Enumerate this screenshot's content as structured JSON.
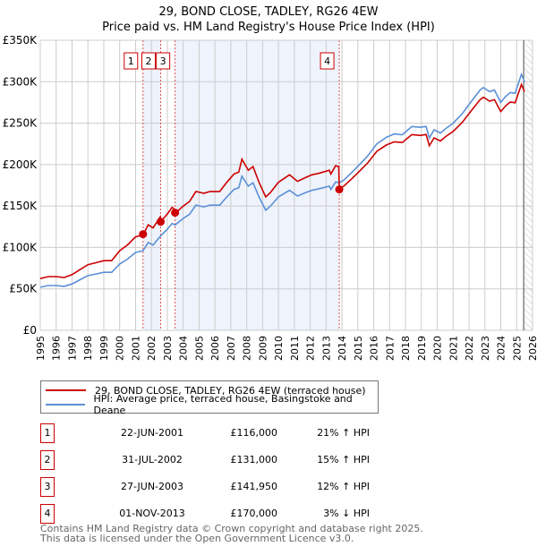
{
  "chart_data": {
    "type": "line",
    "title": "29, BOND CLOSE, TADLEY, RG26 4EW",
    "subtitle": "Price paid vs. HM Land Registry's House Price Index (HPI)",
    "xlim": [
      1995,
      2026
    ],
    "ylim": [
      0,
      350000
    ],
    "y_ticks": [
      {
        "v": 0,
        "label": "£0"
      },
      {
        "v": 50000,
        "label": "£50K"
      },
      {
        "v": 100000,
        "label": "£100K"
      },
      {
        "v": 150000,
        "label": "£150K"
      },
      {
        "v": 200000,
        "label": "£200K"
      },
      {
        "v": 250000,
        "label": "£250K"
      },
      {
        "v": 300000,
        "label": "£300K"
      },
      {
        "v": 350000,
        "label": "£350K"
      }
    ],
    "x_ticks": [
      "1995",
      "1996",
      "1997",
      "1998",
      "1999",
      "2000",
      "2001",
      "2002",
      "2003",
      "2004",
      "2005",
      "2006",
      "2007",
      "2008",
      "2009",
      "2010",
      "2011",
      "2012",
      "2013",
      "2014",
      "2015",
      "2016",
      "2017",
      "2018",
      "2019",
      "2020",
      "2021",
      "2022",
      "2023",
      "2024",
      "2025",
      "2026"
    ],
    "grid": true,
    "future_hatch_from": 2025.5,
    "series": [
      {
        "name": "29, BOND CLOSE, TADLEY, RG26 4EW (terraced house)",
        "color": "#cc0000",
        "x": [
          1995.0,
          1995.5,
          1996.0,
          1996.5,
          1997.0,
          1997.5,
          1998.0,
          1998.5,
          1999.0,
          1999.5,
          2000.0,
          2000.5,
          2001.0,
          2001.47,
          2001.8,
          2002.1,
          2002.55,
          2002.58,
          2003.0,
          2003.3,
          2003.45,
          2003.49,
          2004.0,
          2004.4,
          2004.8,
          2005.3,
          2005.7,
          2006.3,
          2006.7,
          2007.2,
          2007.5,
          2007.7,
          2008.1,
          2008.4,
          2008.8,
          2009.2,
          2009.5,
          2010.0,
          2010.7,
          2011.2,
          2011.7,
          2012.1,
          2012.6,
          2013.2,
          2013.3,
          2013.6,
          2013.8,
          2013.83,
          2014.1,
          2014.6,
          2015.1,
          2015.6,
          2016.2,
          2016.8,
          2017.3,
          2017.8,
          2018.4,
          2018.9,
          2019.3,
          2019.5,
          2019.8,
          2020.2,
          2020.5,
          2021.0,
          2021.6,
          2022.1,
          2022.7,
          2022.9,
          2023.3,
          2023.6,
          2024.0,
          2024.3,
          2024.6,
          2024.9,
          2025.3,
          2025.5
        ],
        "y": [
          62400,
          64800,
          64800,
          63600,
          67200,
          73200,
          79200,
          81600,
          84000,
          84000,
          96000,
          103200,
          112800,
          115200,
          127200,
          123600,
          136800,
          131100,
          140300,
          148400,
          146000,
          141000,
          149900,
          155400,
          167600,
          165400,
          167600,
          167600,
          177600,
          188700,
          190900,
          206500,
          193100,
          197600,
          177600,
          161000,
          166500,
          178700,
          187600,
          179800,
          184300,
          187600,
          189800,
          193100,
          188700,
          198700,
          197600,
          170900,
          173800,
          182400,
          192000,
          201600,
          216000,
          223700,
          227500,
          226600,
          236200,
          235200,
          236200,
          222700,
          232300,
          228500,
          233300,
          240000,
          251500,
          264000,
          278400,
          281300,
          276500,
          278400,
          264000,
          270700,
          275500,
          274600,
          296600,
          288000
        ]
      },
      {
        "name": "HPI: Average price, terraced house, Basingstoke and Deane",
        "color": "#5b8fd6",
        "x": [
          1995.0,
          1995.5,
          1996.0,
          1996.5,
          1997.0,
          1997.5,
          1998.0,
          1998.5,
          1999.0,
          1999.5,
          2000.0,
          2000.5,
          2001.0,
          2001.47,
          2001.8,
          2002.1,
          2002.58,
          2003.0,
          2003.3,
          2003.49,
          2004.0,
          2004.4,
          2004.8,
          2005.3,
          2005.7,
          2006.3,
          2006.7,
          2007.2,
          2007.5,
          2007.7,
          2008.1,
          2008.4,
          2008.8,
          2009.2,
          2009.5,
          2010.0,
          2010.7,
          2011.2,
          2011.7,
          2012.1,
          2012.6,
          2013.2,
          2013.3,
          2013.6,
          2013.83,
          2014.1,
          2014.6,
          2015.1,
          2015.6,
          2016.2,
          2016.8,
          2017.3,
          2017.8,
          2018.4,
          2018.9,
          2019.3,
          2019.5,
          2019.8,
          2020.2,
          2020.5,
          2021.0,
          2021.6,
          2022.1,
          2022.7,
          2022.9,
          2023.3,
          2023.6,
          2024.0,
          2024.3,
          2024.6,
          2024.9,
          2025.3,
          2025.5
        ],
        "y": [
          52000,
          54000,
          54000,
          53000,
          56000,
          61000,
          66000,
          68000,
          70000,
          70000,
          80000,
          86000,
          94000,
          96000,
          106000,
          103000,
          114000,
          122000,
          129000,
          127000,
          135000,
          140000,
          151000,
          149000,
          151000,
          151000,
          160000,
          170000,
          172000,
          186000,
          174000,
          178000,
          160000,
          145000,
          150000,
          161000,
          169000,
          162000,
          166000,
          169000,
          171000,
          174000,
          170000,
          179000,
          178000,
          181000,
          190000,
          200000,
          210000,
          225000,
          233000,
          237000,
          236000,
          246000,
          245000,
          246000,
          232000,
          242000,
          238000,
          243000,
          250000,
          262000,
          275000,
          290000,
          293000,
          288000,
          290000,
          275000,
          282000,
          287000,
          286000,
          309000,
          300000
        ]
      }
    ],
    "sales": [
      {
        "n": "1",
        "x": 2001.47,
        "price": 116000,
        "date": "22-JUN-2001",
        "price_label": "£116,000",
        "hpi": "21% ↑ HPI"
      },
      {
        "n": "2",
        "x": 2002.58,
        "price": 131000,
        "date": "31-JUL-2002",
        "price_label": "£131,000",
        "hpi": "15% ↑ HPI"
      },
      {
        "n": "3",
        "x": 2003.49,
        "price": 141950,
        "date": "27-JUN-2003",
        "price_label": "£141,950",
        "hpi": "12% ↑ HPI"
      },
      {
        "n": "4",
        "x": 2013.83,
        "price": 170000,
        "date": "01-NOV-2013",
        "price_label": "£170,000",
        "hpi": "3% ↓ HPI"
      }
    ],
    "shaded_ranges": [
      [
        2001.47,
        2002.58
      ],
      [
        2003.49,
        2013.83
      ]
    ]
  },
  "legend": {
    "red": "29, BOND CLOSE, TADLEY, RG26 4EW (terraced house)",
    "blue": "HPI: Average price, terraced house, Basingstoke and Deane"
  },
  "footer": {
    "line1": "Contains HM Land Registry data © Crown copyright and database right 2025.",
    "line2": "This data is licensed under the Open Government Licence v3.0."
  }
}
